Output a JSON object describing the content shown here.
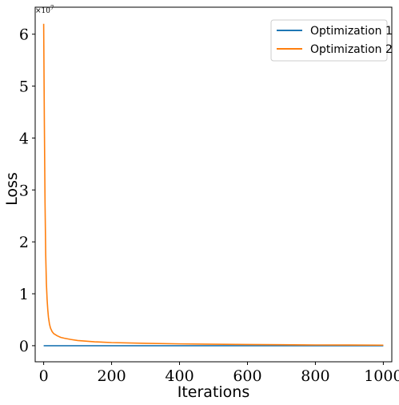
{
  "chart_data": {
    "type": "line",
    "xlabel": "Iterations",
    "ylabel": "Loss",
    "y_multiplier": "×10",
    "y_multiplier_exp": "7",
    "xlim": [
      -25,
      1025
    ],
    "ylim": [
      -0.31,
      6.52
    ],
    "x_ticks": [
      0,
      200,
      400,
      600,
      800,
      1000
    ],
    "y_ticks": [
      0,
      1,
      2,
      3,
      4,
      5,
      6
    ],
    "legend_position": "top-right",
    "grid": false,
    "series": [
      {
        "name": "Optimization 1",
        "color": "#1f77b4",
        "x": [
          0,
          1000
        ],
        "y": [
          0.0,
          0.0
        ]
      },
      {
        "name": "Optimization 2",
        "color": "#ff7f0e",
        "x": [
          0,
          2,
          4,
          6,
          8,
          10,
          12,
          14,
          17,
          20,
          25,
          30,
          40,
          50,
          60,
          80,
          100,
          150,
          200,
          300,
          400,
          500,
          600,
          700,
          800,
          900,
          1000
        ],
        "y": [
          6.2,
          4.3,
          2.75,
          1.75,
          1.2,
          0.9,
          0.7,
          0.55,
          0.42,
          0.34,
          0.27,
          0.23,
          0.19,
          0.16,
          0.145,
          0.12,
          0.1,
          0.075,
          0.06,
          0.045,
          0.035,
          0.028,
          0.022,
          0.018,
          0.014,
          0.012,
          0.01
        ]
      }
    ]
  }
}
